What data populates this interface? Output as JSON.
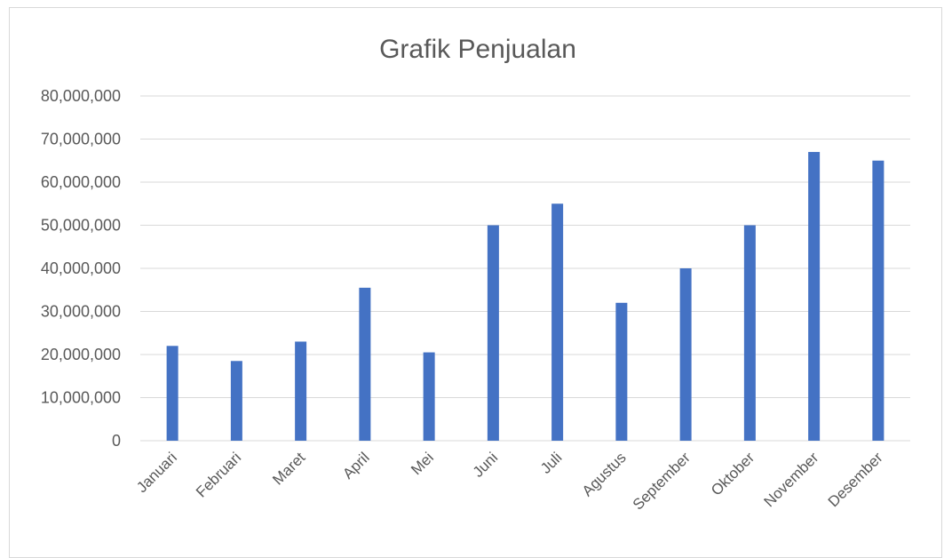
{
  "chart_data": {
    "type": "bar",
    "title": "Grafik Penjualan",
    "categories": [
      "Januari",
      "Februari",
      "Maret",
      "April",
      "Mei",
      "Juni",
      "Juli",
      "Agustus",
      "September",
      "Oktober",
      "November",
      "Desember"
    ],
    "values": [
      22000000,
      18500000,
      23000000,
      35500000,
      20500000,
      50000000,
      55000000,
      32000000,
      40000000,
      50000000,
      67000000,
      65000000
    ],
    "ylim": [
      0,
      80000000
    ],
    "yticks": [
      0,
      10000000,
      20000000,
      30000000,
      40000000,
      50000000,
      60000000,
      70000000,
      80000000
    ],
    "ytick_labels": [
      "0",
      "10,000,000",
      "20,000,000",
      "30,000,000",
      "40,000,000",
      "50,000,000",
      "60,000,000",
      "70,000,000",
      "80,000,000"
    ],
    "grid": true,
    "legend": "none",
    "bar_color": "#4472C4"
  }
}
